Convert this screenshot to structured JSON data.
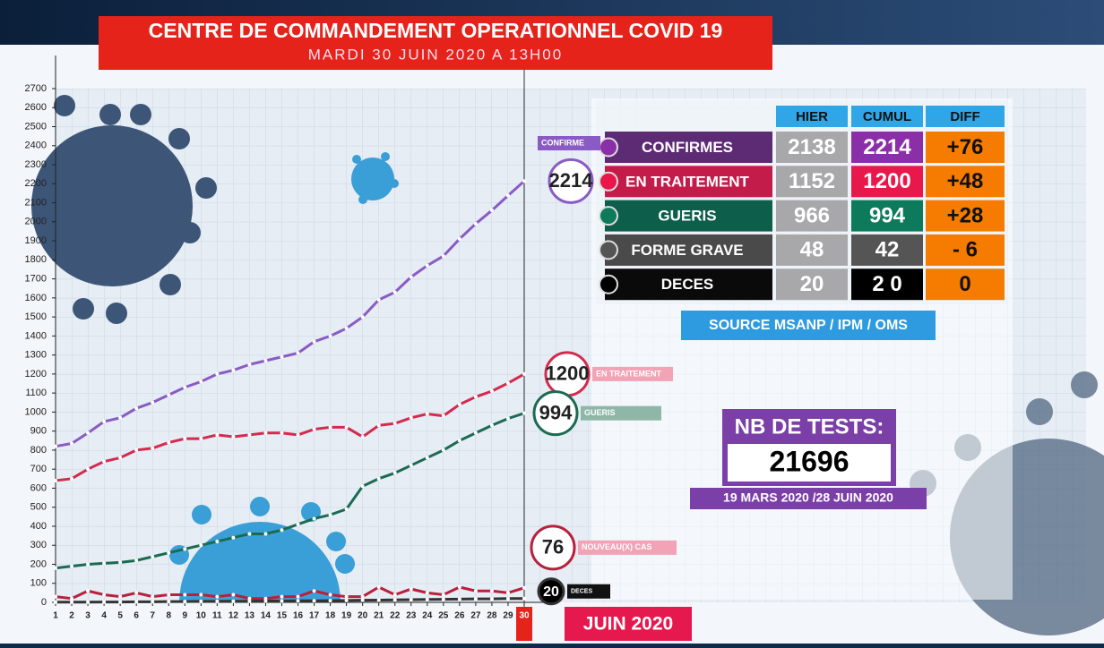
{
  "chart_data": {
    "type": "line",
    "title": "CENTRE DE COMMANDEMENT OPERATIONNEL COVID 19",
    "subtitle": "MARDI 30 JUIN 2020 A 13H00",
    "x_label": "JUIN 2020",
    "x": [
      1,
      2,
      3,
      4,
      5,
      6,
      7,
      8,
      9,
      10,
      11,
      12,
      13,
      14,
      15,
      16,
      17,
      18,
      19,
      20,
      21,
      22,
      23,
      24,
      25,
      26,
      27,
      28,
      29,
      30
    ],
    "xlim": [
      1,
      30
    ],
    "ylim": [
      0,
      2700
    ],
    "yticks": [
      0,
      100,
      200,
      300,
      400,
      500,
      600,
      700,
      800,
      900,
      1000,
      1100,
      1200,
      1300,
      1400,
      1500,
      1600,
      1700,
      1800,
      1900,
      2000,
      2100,
      2200,
      2300,
      2400,
      2500,
      2600,
      2700
    ],
    "grid": true,
    "series": [
      {
        "name": "CONFIRME",
        "color": "#8a5bc4",
        "values": [
          820,
          835,
          890,
          950,
          970,
          1020,
          1050,
          1090,
          1130,
          1160,
          1200,
          1220,
          1250,
          1270,
          1290,
          1310,
          1370,
          1400,
          1440,
          1500,
          1590,
          1630,
          1710,
          1770,
          1820,
          1910,
          1990,
          2060,
          2138,
          2214
        ]
      },
      {
        "name": "EN TRAITEMENT",
        "color": "#d42a4e",
        "values": [
          640,
          650,
          700,
          740,
          760,
          800,
          810,
          840,
          860,
          860,
          880,
          870,
          880,
          890,
          890,
          880,
          910,
          920,
          920,
          870,
          930,
          940,
          970,
          990,
          980,
          1040,
          1080,
          1110,
          1152,
          1200
        ]
      },
      {
        "name": "GUERIS",
        "color": "#1a6b52",
        "values": [
          180,
          190,
          200,
          205,
          210,
          220,
          240,
          260,
          280,
          300,
          320,
          340,
          360,
          360,
          380,
          410,
          440,
          460,
          490,
          610,
          650,
          680,
          720,
          760,
          800,
          850,
          890,
          930,
          966,
          994
        ]
      },
      {
        "name": "NOUVEAU(X) CAS",
        "color": "#b8203c",
        "values": [
          30,
          20,
          60,
          40,
          30,
          50,
          30,
          40,
          40,
          40,
          30,
          40,
          20,
          20,
          30,
          30,
          60,
          40,
          30,
          30,
          80,
          40,
          70,
          50,
          40,
          80,
          60,
          60,
          50,
          76
        ]
      },
      {
        "name": "DECES",
        "color": "#333333",
        "values": [
          1,
          1,
          1,
          2,
          2,
          3,
          3,
          4,
          4,
          5,
          5,
          6,
          6,
          7,
          7,
          8,
          8,
          9,
          10,
          11,
          12,
          13,
          14,
          15,
          16,
          17,
          18,
          18,
          20,
          20
        ]
      }
    ]
  },
  "table": {
    "header": [
      "HIER",
      "CUMUL",
      "DIFF"
    ],
    "rows": [
      [
        "CONFIRMES",
        "2138",
        "2214",
        "+76"
      ],
      [
        "EN TRAITEMENT",
        "1152",
        "1200",
        "+48"
      ],
      [
        "GUERIS",
        "966",
        "994",
        "+28"
      ],
      [
        "FORME GRAVE",
        "48",
        "42",
        "- 6"
      ],
      [
        "DECES",
        "20",
        "2 0",
        "0"
      ]
    ],
    "source": "SOURCE MSANP / IPM / OMS"
  },
  "tests": {
    "label": "NB DE TESTS:",
    "value": "21696",
    "period": "19 MARS 2020 /28 JUIN 2020"
  }
}
